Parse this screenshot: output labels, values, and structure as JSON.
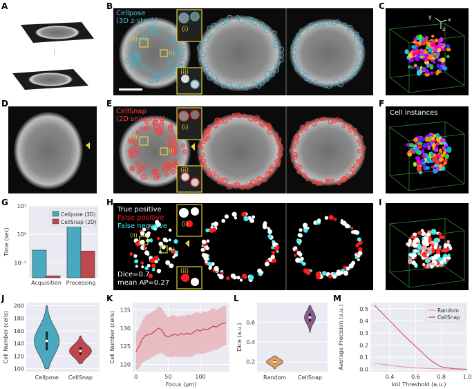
{
  "panel_labels": [
    "A",
    "B",
    "C",
    "D",
    "E",
    "F",
    "G",
    "H",
    "I",
    "J",
    "K",
    "L",
    "M"
  ],
  "panel_b": {
    "legend_line1": "Cellpose",
    "legend_line2": "(3D z-stack)",
    "inset_top": "(i)",
    "inset_bottom": "(ii)",
    "marker_i": "(i)",
    "marker_ii": "(ii)"
  },
  "panel_e": {
    "legend_line1": "CellSnap",
    "legend_line2": "(2D snapshot)",
    "inset_top": "(i)",
    "inset_bottom": "(ii)",
    "marker_i": "(i)",
    "marker_ii": "(ii)"
  },
  "panel_c": {
    "axis_y": "y",
    "axis_x": "x",
    "axis_z": "z"
  },
  "panel_f": {
    "title": "Cell instances"
  },
  "panel_h": {
    "tp": "True positive",
    "fp": "False positive",
    "fn": "False negative",
    "dice": "Dice=0.7",
    "map": "mean AP=0.27",
    "inset_top": "(i)",
    "inset_bottom": "(ii)",
    "marker_i": "(i)",
    "marker_ii": "(ii)"
  },
  "colors": {
    "cellpose": "#4aa8c0",
    "cellsnap": "#c0474e",
    "fp_red": "#ff1a1a",
    "fn_cyan": "#3ff0f0",
    "inset_yellow": "#e8d33a",
    "plot_bg": "#eaeaf2"
  },
  "chart_data": [
    {
      "panel": "G",
      "type": "bar",
      "ylabel": "Time (sec)",
      "yscale": "log",
      "ylim": [
        0.03,
        10
      ],
      "yticks": [
        "10⁻¹",
        "10⁰",
        "10¹"
      ],
      "categories": [
        "Acquisition",
        "Processing"
      ],
      "legend": "top-right",
      "series": [
        {
          "name": "Cellpose (3D)",
          "values": [
            0.28,
            3.5
          ]
        },
        {
          "name": "CellSnap (2D)",
          "values": [
            0.035,
            0.26
          ]
        }
      ]
    },
    {
      "panel": "J",
      "type": "violin",
      "ylabel": "Cell Number (cells)",
      "ylim": [
        95,
        205
      ],
      "yticks": [
        "100",
        "120",
        "140",
        "160",
        "180",
        "200"
      ],
      "categories": [
        "Cellpose",
        "CellSnap"
      ],
      "median": [
        144,
        128
      ]
    },
    {
      "panel": "K",
      "type": "line",
      "xlabel": "Focus (μm)",
      "ylabel": "Cell Number (cells)",
      "xlim": [
        -5,
        145
      ],
      "ylim": [
        118,
        137
      ],
      "xticks": [
        "0",
        "50",
        "100"
      ],
      "yticks": [
        "120",
        "125",
        "130",
        "135"
      ],
      "x": [
        0,
        5,
        10,
        15,
        20,
        25,
        30,
        35,
        40,
        45,
        50,
        55,
        60,
        65,
        70,
        75,
        80,
        85,
        90,
        95,
        100,
        105,
        110,
        115,
        120,
        125,
        130,
        135,
        140
      ],
      "y": [
        123.5,
        125,
        127,
        128,
        128.2,
        128.5,
        129.3,
        130,
        129.5,
        128,
        127.5,
        128,
        128.3,
        128,
        128.5,
        128.2,
        128.6,
        128.3,
        129,
        129.5,
        129.2,
        129.8,
        129.5,
        130,
        130.5,
        130.3,
        131,
        131.3,
        131.5
      ],
      "band_lower": [
        118.5,
        119,
        120.5,
        121,
        121.5,
        122,
        122.5,
        123,
        123.2,
        122.5,
        122,
        122,
        122.3,
        122,
        122.2,
        122,
        122.1,
        122,
        122.5,
        123,
        122.8,
        123,
        123.2,
        123.5,
        124,
        124,
        124.5,
        125,
        125.3
      ],
      "band_upper": [
        128.5,
        130,
        132,
        133.5,
        134,
        134.5,
        135,
        136,
        135.5,
        134,
        133,
        133.5,
        133.5,
        133,
        133.5,
        133.2,
        133.8,
        133.5,
        134,
        134.5,
        134,
        134.5,
        134.5,
        135,
        135.5,
        135,
        135.5,
        136,
        136
      ]
    },
    {
      "panel": "L",
      "type": "violin",
      "ylabel": "Dice (a.u.)",
      "ylim": [
        0.1,
        0.8
      ],
      "yticks": [
        "0.2",
        "0.4",
        "0.6"
      ],
      "categories": [
        "Random",
        "CellSnap"
      ],
      "median": [
        0.2,
        0.65
      ]
    },
    {
      "panel": "M",
      "type": "line",
      "xlabel": "IoU Threshold (a.u.)",
      "ylabel": "Average Precision (a.u.)",
      "xlim": [
        0.25,
        1.0
      ],
      "ylim": [
        -0.02,
        0.55
      ],
      "xticks": [
        "0.4",
        "0.6",
        "0.8",
        "1.0"
      ],
      "yticks": [
        "0.0",
        "0.1",
        "0.2",
        "0.3",
        "0.4",
        "0.5"
      ],
      "legend": "top-right",
      "series": [
        {
          "name": "Random",
          "x": [
            0.28,
            0.4,
            0.5,
            0.6,
            0.7,
            0.8,
            0.9,
            1.0
          ],
          "y": [
            0.05,
            0.035,
            0.02,
            0.012,
            0.006,
            0.003,
            0.001,
            0.0
          ]
        },
        {
          "name": "CellSnap",
          "x": [
            0.28,
            0.4,
            0.5,
            0.6,
            0.7,
            0.75,
            0.8,
            0.9,
            1.0
          ],
          "y": [
            0.53,
            0.4,
            0.29,
            0.19,
            0.09,
            0.05,
            0.02,
            0.005,
            0.0
          ]
        }
      ]
    }
  ]
}
